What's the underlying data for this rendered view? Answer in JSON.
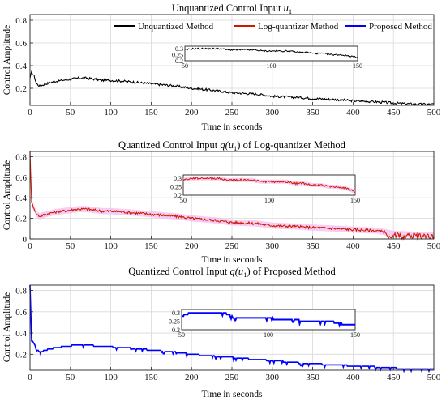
{
  "colors": {
    "unquantized": "#000000",
    "log_quantizer": "#cc1a00",
    "log_band": "#f5b8f0",
    "proposed": "#0000ff"
  },
  "chart_data": [
    {
      "type": "line",
      "title_prefix": "Unquantized Control Input ",
      "title_math": "u",
      "title_sub": "1",
      "xlabel": "Time in seconds",
      "ylabel": "Control Amplitude",
      "xlim": [
        0,
        500
      ],
      "ylim": [
        0.05,
        0.85
      ],
      "xticks": [
        0,
        50,
        100,
        150,
        200,
        250,
        300,
        350,
        400,
        450,
        500
      ],
      "xtick_labels": [
        "0",
        "50",
        "100",
        "150",
        "200",
        "250",
        "300",
        "350",
        "400",
        "450",
        "500"
      ],
      "yticks": [
        0.2,
        0.4,
        0.6,
        0.8
      ],
      "ytick_labels": [
        "0.2",
        "0.4",
        "0.6",
        "0.8"
      ],
      "grid": true,
      "legend_position": "top-right",
      "legend": [
        {
          "label": "Unquantized Method",
          "color": "#000000"
        },
        {
          "label": "Log-quantizer Method",
          "color": "#cc1a00"
        },
        {
          "label": "Proposed Method",
          "color": "#0000ff"
        }
      ],
      "series": [
        {
          "name": "Unquantized Method",
          "color": "#000000",
          "x": [
            0,
            2,
            5,
            8,
            12,
            20,
            30,
            40,
            50,
            60,
            70,
            80,
            90,
            100,
            120,
            150,
            180,
            200,
            230,
            250,
            280,
            300,
            330,
            350,
            380,
            400,
            430,
            450,
            480,
            500
          ],
          "y": [
            0.29,
            0.34,
            0.31,
            0.24,
            0.22,
            0.24,
            0.26,
            0.27,
            0.28,
            0.29,
            0.29,
            0.28,
            0.27,
            0.27,
            0.26,
            0.24,
            0.22,
            0.2,
            0.18,
            0.16,
            0.15,
            0.13,
            0.12,
            0.11,
            0.1,
            0.09,
            0.08,
            0.07,
            0.06,
            0.06
          ]
        }
      ],
      "inset": {
        "xlim": [
          50,
          150
        ],
        "ylim": [
          0.2,
          0.32
        ],
        "xticks": [
          50,
          100,
          150
        ],
        "xtick_labels": [
          "50",
          "100",
          "150"
        ],
        "yticks": [
          0.2,
          0.25,
          0.3
        ],
        "ytick_labels": [
          "0.2",
          "0.25",
          "0.3"
        ],
        "x": [
          50,
          55,
          60,
          65,
          70,
          75,
          80,
          85,
          90,
          95,
          100,
          105,
          110,
          115,
          120,
          125,
          130,
          135,
          140,
          145,
          150
        ],
        "y": [
          0.29,
          0.3,
          0.3,
          0.3,
          0.3,
          0.29,
          0.29,
          0.29,
          0.29,
          0.28,
          0.28,
          0.28,
          0.28,
          0.27,
          0.27,
          0.26,
          0.26,
          0.25,
          0.25,
          0.24,
          0.23
        ]
      }
    },
    {
      "type": "line",
      "title_prefix": "Quantized Control Input ",
      "title_math": "q(u",
      "title_sub": "1",
      "title_suffix": ") of Log-quantizer Method",
      "xlabel": "Time in seconds",
      "ylabel": "Control Amplitude",
      "xlim": [
        0,
        500
      ],
      "ylim": [
        0,
        0.85
      ],
      "xticks": [
        0,
        50,
        100,
        150,
        200,
        250,
        300,
        350,
        400,
        450,
        500
      ],
      "xtick_labels": [
        "0",
        "50",
        "100",
        "150",
        "200",
        "250",
        "300",
        "350",
        "400",
        "450",
        "500"
      ],
      "yticks": [
        0,
        0.2,
        0.4,
        0.6,
        0.8
      ],
      "ytick_labels": [
        "0",
        "0.2",
        "0.4",
        "0.6",
        "0.8"
      ],
      "grid": true,
      "series": [
        {
          "name": "Log-quantizer Method",
          "color": "#cc1a00",
          "x": [
            0,
            2,
            5,
            8,
            12,
            20,
            30,
            40,
            50,
            60,
            70,
            80,
            90,
            100,
            120,
            150,
            180,
            200,
            230,
            250,
            280,
            300,
            330,
            350,
            380,
            400,
            430,
            450,
            480,
            500
          ],
          "y": [
            0.85,
            0.35,
            0.3,
            0.24,
            0.22,
            0.24,
            0.26,
            0.27,
            0.28,
            0.29,
            0.29,
            0.28,
            0.27,
            0.27,
            0.26,
            0.24,
            0.22,
            0.2,
            0.18,
            0.16,
            0.15,
            0.13,
            0.12,
            0.11,
            0.1,
            0.09,
            0.08,
            0.05,
            0.04,
            0.04
          ]
        }
      ],
      "inset": {
        "xlim": [
          50,
          150
        ],
        "ylim": [
          0.2,
          0.32
        ],
        "xticks": [
          50,
          100,
          150
        ],
        "xtick_labels": [
          "50",
          "100",
          "150"
        ],
        "yticks": [
          0.2,
          0.25,
          0.3
        ],
        "ytick_labels": [
          "0.2",
          "0.25",
          "0.3"
        ],
        "x": [
          50,
          55,
          60,
          65,
          70,
          75,
          80,
          85,
          90,
          95,
          100,
          105,
          110,
          115,
          120,
          125,
          130,
          135,
          140,
          145,
          150
        ],
        "y": [
          0.29,
          0.3,
          0.3,
          0.3,
          0.3,
          0.29,
          0.29,
          0.29,
          0.29,
          0.28,
          0.28,
          0.28,
          0.28,
          0.27,
          0.27,
          0.26,
          0.26,
          0.25,
          0.25,
          0.24,
          0.22
        ]
      }
    },
    {
      "type": "line",
      "title_prefix": "Quantized Control Input ",
      "title_math": "q(u",
      "title_sub": "1",
      "title_suffix": ") of Proposed Method",
      "xlabel": "Time in seconds",
      "ylabel": "Control Amplitude",
      "xlim": [
        0,
        500
      ],
      "ylim": [
        0.05,
        0.85
      ],
      "xticks": [
        0,
        50,
        100,
        150,
        200,
        250,
        300,
        350,
        400,
        450,
        500
      ],
      "xtick_labels": [
        "0",
        "50",
        "100",
        "150",
        "200",
        "250",
        "300",
        "350",
        "400",
        "450",
        "500"
      ],
      "yticks": [
        0.2,
        0.4,
        0.6,
        0.8
      ],
      "ytick_labels": [
        "0.2",
        "0.4",
        "0.6",
        "0.8"
      ],
      "grid": true,
      "series": [
        {
          "name": "Proposed Method",
          "color": "#0000ff",
          "x": [
            0,
            2,
            5,
            8,
            12,
            20,
            30,
            40,
            50,
            60,
            70,
            80,
            90,
            100,
            120,
            150,
            180,
            200,
            230,
            250,
            280,
            300,
            330,
            350,
            380,
            400,
            430,
            450,
            480,
            500
          ],
          "y": [
            0.85,
            0.33,
            0.3,
            0.25,
            0.22,
            0.24,
            0.26,
            0.27,
            0.28,
            0.29,
            0.29,
            0.28,
            0.27,
            0.27,
            0.26,
            0.24,
            0.22,
            0.2,
            0.18,
            0.17,
            0.15,
            0.14,
            0.12,
            0.11,
            0.1,
            0.09,
            0.08,
            0.07,
            0.06,
            0.06
          ]
        }
      ],
      "inset": {
        "xlim": [
          50,
          150
        ],
        "ylim": [
          0.2,
          0.32
        ],
        "xticks": [
          50,
          100,
          150
        ],
        "xtick_labels": [
          "50",
          "100",
          "150"
        ],
        "yticks": [
          0.2,
          0.25,
          0.3
        ],
        "ytick_labels": [
          "0.2",
          "0.25",
          "0.3"
        ],
        "x": [
          50,
          55,
          60,
          65,
          70,
          75,
          80,
          85,
          90,
          95,
          100,
          105,
          110,
          115,
          120,
          125,
          130,
          135,
          140,
          145,
          150
        ],
        "y": [
          0.28,
          0.3,
          0.3,
          0.3,
          0.3,
          0.3,
          0.27,
          0.27,
          0.27,
          0.27,
          0.27,
          0.26,
          0.26,
          0.26,
          0.25,
          0.25,
          0.25,
          0.25,
          0.24,
          0.23,
          0.23
        ]
      }
    }
  ]
}
